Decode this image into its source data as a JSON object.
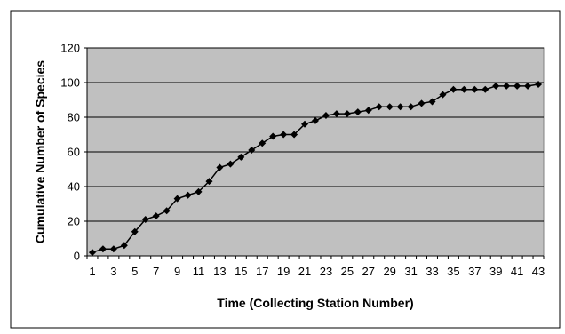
{
  "chart_data": {
    "type": "line",
    "title": "",
    "xlabel": "Time (Collecting Station Number)",
    "ylabel": "Cumulative Number of Species",
    "x": [
      1,
      2,
      3,
      4,
      5,
      6,
      7,
      8,
      9,
      10,
      11,
      12,
      13,
      14,
      15,
      16,
      17,
      18,
      19,
      20,
      21,
      22,
      23,
      24,
      25,
      26,
      27,
      28,
      29,
      30,
      31,
      32,
      33,
      34,
      35,
      36,
      37,
      38,
      39,
      40,
      41,
      42,
      43
    ],
    "x_tick_labels": [
      "1",
      "3",
      "5",
      "7",
      "9",
      "11",
      "13",
      "15",
      "17",
      "19",
      "21",
      "23",
      "25",
      "27",
      "29",
      "31",
      "33",
      "35",
      "37",
      "39",
      "41",
      "43"
    ],
    "y_tick_labels": [
      "0",
      "20",
      "40",
      "60",
      "80",
      "100",
      "120"
    ],
    "ylim": [
      0,
      120
    ],
    "yticks": [
      0,
      20,
      40,
      60,
      80,
      100,
      120
    ],
    "grid": "horizontal",
    "legend": "none",
    "series": [
      {
        "values": [
          2,
          4,
          4,
          6,
          14,
          21,
          23,
          26,
          33,
          35,
          37,
          43,
          51,
          53,
          57,
          61,
          65,
          69,
          70,
          70,
          76,
          78,
          81,
          82,
          82,
          83,
          84,
          86,
          86,
          86,
          86,
          88,
          89,
          93,
          96,
          96,
          96,
          96,
          98,
          98,
          98,
          98,
          99
        ],
        "color": "#000000",
        "marker": "diamond"
      }
    ],
    "plot_background": "#c0c0c0",
    "gridline_color": "#000000"
  }
}
